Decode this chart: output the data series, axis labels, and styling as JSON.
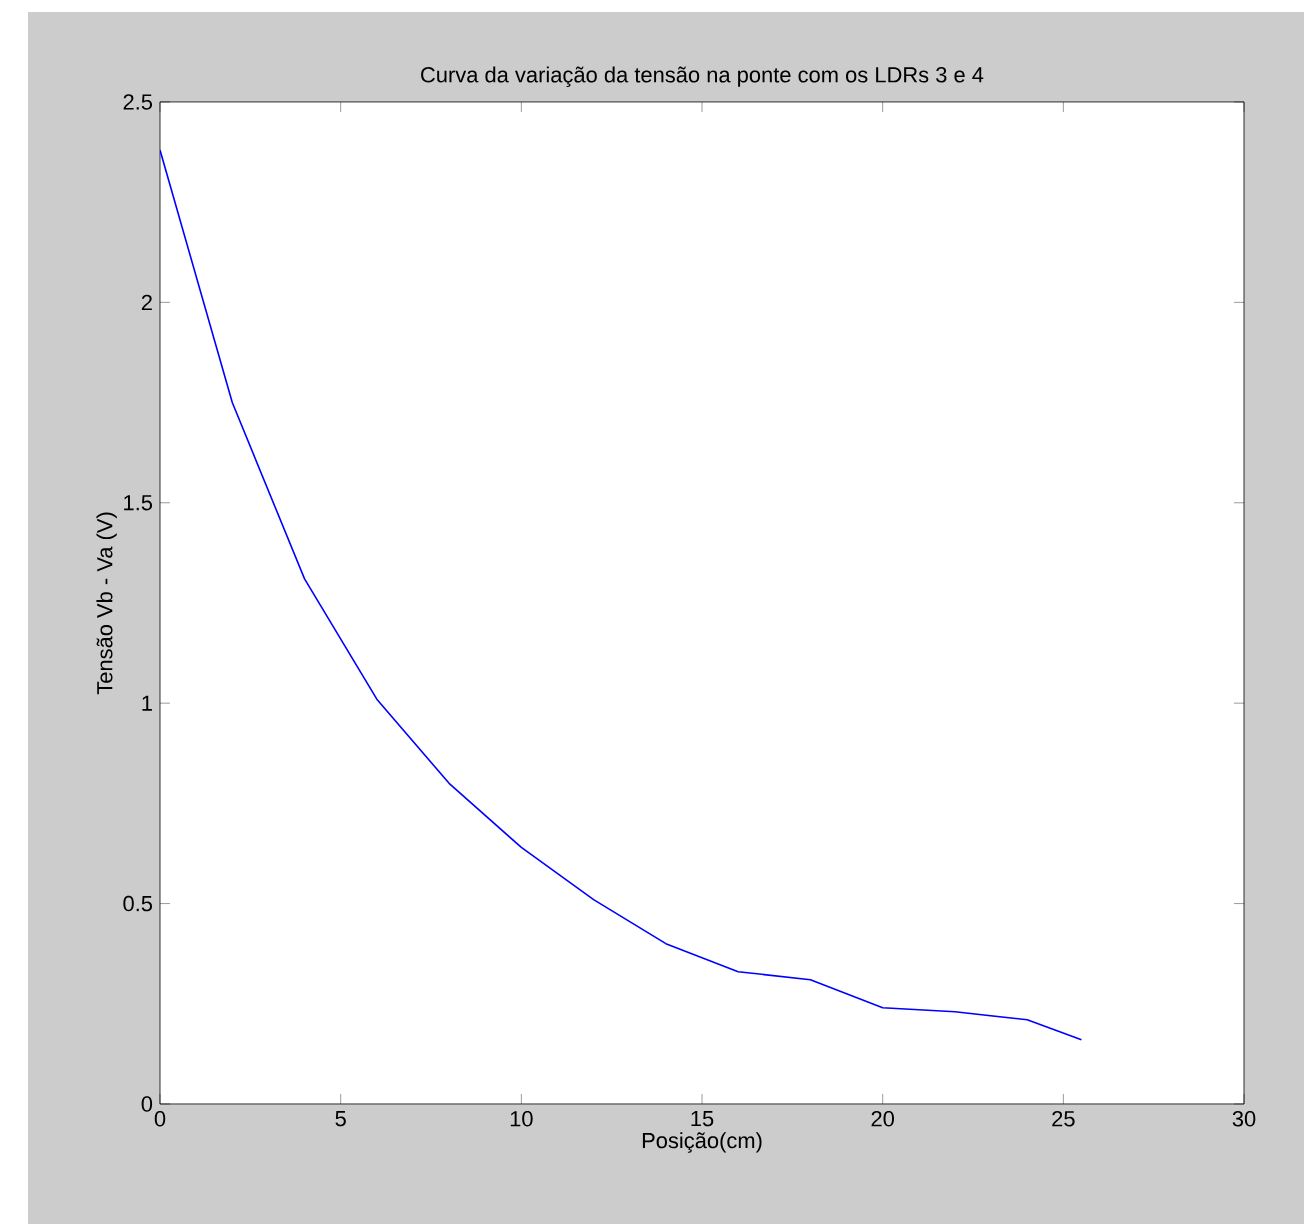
{
  "chart_data": {
    "type": "line",
    "title": "Curva da variação da tensão na ponte com os LDRs 3 e 4",
    "xlabel": "Posição(cm)",
    "ylabel": "Tensão Vb - Va (V)",
    "x": [
      0,
      2,
      4,
      6,
      8,
      10,
      12,
      14,
      16,
      18,
      20,
      22,
      24,
      25.5
    ],
    "series": [
      {
        "color": "#0000ff",
        "values": [
          2.38,
          1.75,
          1.31,
          1.01,
          0.8,
          0.64,
          0.51,
          0.4,
          0.33,
          0.31,
          0.24,
          0.23,
          0.21,
          0.16
        ]
      }
    ],
    "xlim": [
      0,
      30
    ],
    "ylim": [
      0,
      2.5
    ],
    "xticks": [
      0,
      5,
      10,
      15,
      20,
      25,
      30
    ],
    "yticks": [
      0,
      0.5,
      1,
      1.5,
      2,
      2.5
    ],
    "marker": "none",
    "line_style": "solid"
  }
}
